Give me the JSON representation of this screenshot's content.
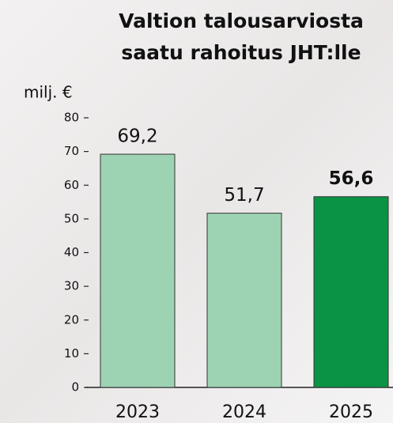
{
  "chart_data": {
    "type": "bar",
    "title": [
      "Valtion talousarviosta",
      "saatu rahoitus JHT:lle"
    ],
    "y_label": "milj. €",
    "categories": [
      "2023",
      "2024",
      "2025"
    ],
    "values": [
      69.2,
      51.7,
      56.6
    ],
    "value_labels": [
      "69,2",
      "51,7",
      "56,6"
    ],
    "colors": [
      "#9dd3b3",
      "#9dd3b3",
      "#0a9345"
    ],
    "bold_labels": [
      false,
      false,
      true
    ],
    "ylim": [
      0,
      80
    ],
    "yticks": [
      0,
      10,
      20,
      30,
      40,
      50,
      60,
      70,
      80
    ],
    "grid": false
  }
}
